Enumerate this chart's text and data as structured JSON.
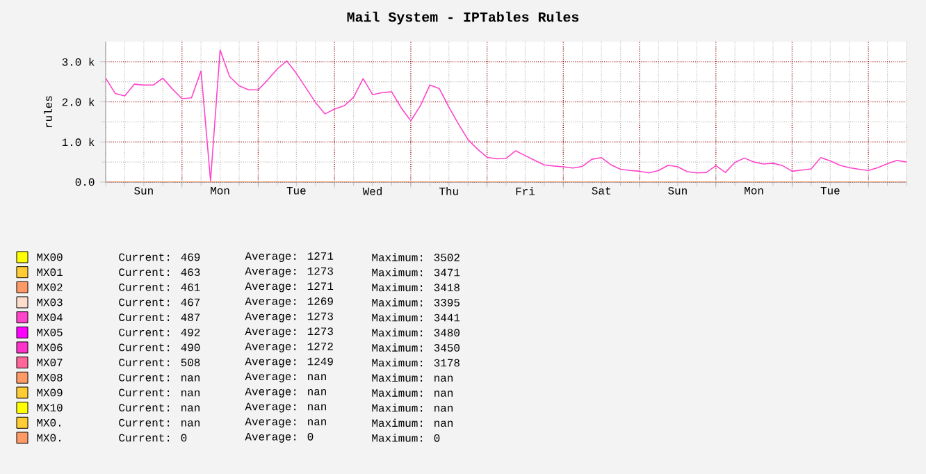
{
  "chart_data": {
    "type": "line",
    "title": "Mail System - IPTables Rules",
    "ylabel": "rules",
    "categories": [
      null,
      null,
      null,
      null,
      "Sun",
      null,
      null,
      null,
      null,
      null,
      null,
      null,
      "Mon",
      null,
      null,
      null,
      null,
      null,
      null,
      null,
      "Tue",
      null,
      null,
      null,
      null,
      null,
      null,
      null,
      "Wed",
      null,
      null,
      null,
      null,
      null,
      null,
      null,
      "Thu",
      null,
      null,
      null,
      null,
      null,
      null,
      null,
      "Fri",
      null,
      null,
      null,
      null,
      null,
      null,
      null,
      "Sat",
      null,
      null,
      null,
      null,
      null,
      null,
      null,
      "Sun",
      null,
      null,
      null,
      null,
      null,
      null,
      null,
      "Mon",
      null,
      null,
      null,
      null,
      null,
      null,
      null,
      "Tue",
      null,
      null,
      null,
      null,
      null,
      null,
      null,
      null
    ],
    "series": [
      {
        "name": "MX00",
        "color": "#ffff00",
        "values": [
          null,
          null,
          null,
          null,
          null,
          null,
          null,
          null,
          null,
          null,
          null,
          null,
          null,
          null,
          null,
          null,
          null,
          null,
          null,
          null,
          null,
          null,
          null,
          null,
          null,
          null,
          null,
          null,
          null,
          null,
          null,
          null,
          null,
          null,
          null,
          null,
          null,
          null,
          null,
          null,
          null,
          null,
          null,
          null,
          null,
          null,
          null,
          null,
          null,
          null,
          null,
          null,
          null,
          null,
          null,
          null,
          null,
          null,
          null,
          null,
          null,
          null,
          null,
          null,
          null,
          null,
          null,
          null,
          null,
          null,
          null,
          null,
          null,
          null,
          null,
          null,
          null,
          null,
          null,
          null,
          null,
          null,
          null,
          null,
          null
        ]
      },
      {
        "name": "MX01",
        "color": "#ffcc33",
        "values": [
          null,
          null,
          null,
          null,
          null,
          null,
          null,
          null,
          null,
          null,
          null,
          null,
          null,
          null,
          null,
          null,
          null,
          null,
          null,
          null,
          null,
          null,
          null,
          null,
          null,
          null,
          null,
          null,
          null,
          null,
          null,
          null,
          null,
          null,
          null,
          null,
          null,
          null,
          null,
          null,
          null,
          null,
          null,
          null,
          null,
          null,
          null,
          null,
          null,
          null,
          null,
          null,
          null,
          null,
          null,
          null,
          null,
          null,
          null,
          null,
          null,
          null,
          null,
          null,
          null,
          null,
          null,
          null,
          null,
          null,
          null,
          null,
          null,
          null,
          null,
          null,
          null,
          null,
          null,
          null,
          null,
          null,
          null,
          null,
          null
        ]
      },
      {
        "name": "MX02",
        "color": "#ff9966",
        "values": [
          null,
          null,
          null,
          null,
          null,
          null,
          null,
          null,
          null,
          null,
          null,
          null,
          null,
          null,
          null,
          null,
          null,
          null,
          null,
          null,
          null,
          null,
          null,
          null,
          null,
          null,
          null,
          null,
          null,
          null,
          null,
          null,
          null,
          null,
          null,
          null,
          null,
          null,
          null,
          null,
          null,
          null,
          null,
          null,
          null,
          null,
          null,
          null,
          null,
          null,
          null,
          null,
          null,
          null,
          null,
          null,
          null,
          null,
          null,
          null,
          null,
          null,
          null,
          null,
          null,
          null,
          null,
          null,
          null,
          null,
          null,
          null,
          null,
          null,
          null,
          null,
          null,
          null,
          null,
          null,
          null,
          null,
          null,
          null,
          null
        ]
      },
      {
        "name": "MX03",
        "color": "#ffddcc",
        "values": [
          null,
          null,
          null,
          null,
          null,
          null,
          null,
          null,
          null,
          null,
          null,
          null,
          null,
          null,
          null,
          null,
          null,
          null,
          null,
          null,
          null,
          null,
          null,
          null,
          null,
          null,
          null,
          null,
          null,
          null,
          null,
          null,
          null,
          null,
          null,
          null,
          null,
          null,
          null,
          null,
          null,
          null,
          null,
          null,
          null,
          null,
          null,
          null,
          null,
          null,
          null,
          null,
          null,
          null,
          null,
          null,
          null,
          null,
          null,
          null,
          null,
          null,
          null,
          null,
          null,
          null,
          null,
          null,
          null,
          null,
          null,
          null,
          null,
          null,
          null,
          null,
          null,
          null,
          null,
          null,
          null,
          null,
          null,
          null,
          null
        ]
      },
      {
        "name": "MX04",
        "color": "#ff44cc",
        "values": [
          2590,
          2210,
          2150,
          2440,
          2420,
          2420,
          2590,
          2320,
          2080,
          2100,
          2770,
          30,
          3290,
          2630,
          2400,
          2300,
          2300,
          2550,
          2820,
          3020,
          2710,
          2350,
          1990,
          1700,
          1820,
          1900,
          2110,
          2580,
          2180,
          2230,
          2250,
          1850,
          1530,
          1900,
          2420,
          2330,
          1870,
          1450,
          1060,
          820,
          620,
          580,
          590,
          780,
          660,
          540,
          430,
          400,
          380,
          350,
          390,
          570,
          610,
          430,
          320,
          290,
          270,
          230,
          290,
          420,
          380,
          260,
          230,
          240,
          410,
          240,
          490,
          600,
          500,
          450,
          470,
          410,
          270,
          300,
          330,
          610,
          530,
          420,
          360,
          320,
          290,
          360,
          460,
          540,
          500
        ]
      },
      {
        "name": "MX05",
        "color": "#ff00ff",
        "values": [
          null,
          null,
          null,
          null,
          null,
          null,
          null,
          null,
          null,
          null,
          null,
          null,
          null,
          null,
          null,
          null,
          null,
          null,
          null,
          null,
          null,
          null,
          null,
          null,
          null,
          null,
          null,
          null,
          null,
          null,
          null,
          null,
          null,
          null,
          null,
          null,
          null,
          null,
          null,
          null,
          null,
          null,
          null,
          null,
          null,
          null,
          null,
          null,
          null,
          null,
          null,
          null,
          null,
          null,
          null,
          null,
          null,
          null,
          null,
          null,
          null,
          null,
          null,
          null,
          null,
          null,
          null,
          null,
          null,
          null,
          null,
          null,
          null,
          null,
          null,
          null,
          null,
          null,
          null,
          null,
          null,
          null,
          null,
          null,
          null
        ]
      },
      {
        "name": "MX06",
        "color": "#ff33cc",
        "values": [
          null,
          null,
          null,
          null,
          null,
          null,
          null,
          null,
          null,
          null,
          null,
          null,
          null,
          null,
          null,
          null,
          null,
          null,
          null,
          null,
          null,
          null,
          null,
          null,
          null,
          null,
          null,
          null,
          null,
          null,
          null,
          null,
          null,
          null,
          null,
          null,
          null,
          null,
          null,
          null,
          null,
          null,
          null,
          null,
          null,
          null,
          null,
          null,
          null,
          null,
          null,
          null,
          null,
          null,
          null,
          null,
          null,
          null,
          null,
          null,
          null,
          null,
          null,
          null,
          null,
          null,
          null,
          null,
          null,
          null,
          null,
          null,
          null,
          null,
          null,
          null,
          null,
          null,
          null,
          null,
          null,
          null,
          null,
          null,
          null
        ]
      },
      {
        "name": "MX07",
        "color": "#ff6699",
        "values": [
          null,
          null,
          null,
          null,
          null,
          null,
          null,
          null,
          null,
          null,
          null,
          null,
          null,
          null,
          null,
          null,
          null,
          null,
          null,
          null,
          null,
          null,
          null,
          null,
          null,
          null,
          null,
          null,
          null,
          null,
          null,
          null,
          null,
          null,
          null,
          null,
          null,
          null,
          null,
          null,
          null,
          null,
          null,
          null,
          null,
          null,
          null,
          null,
          null,
          null,
          null,
          null,
          null,
          null,
          null,
          null,
          null,
          null,
          null,
          null,
          null,
          null,
          null,
          null,
          null,
          null,
          null,
          null,
          null,
          null,
          null,
          null,
          null,
          null,
          null,
          null,
          null,
          null,
          null,
          null,
          null,
          null,
          null,
          null,
          null
        ]
      },
      {
        "name": "MX08",
        "color": "#ff9966",
        "values": [
          null,
          null,
          null,
          null,
          null,
          null,
          null,
          null,
          null,
          null,
          null,
          null,
          null,
          null,
          null,
          null,
          null,
          null,
          null,
          null,
          null,
          null,
          null,
          null,
          null,
          null,
          null,
          null,
          null,
          null,
          null,
          null,
          null,
          null,
          null,
          null,
          null,
          null,
          null,
          null,
          null,
          null,
          null,
          null,
          null,
          null,
          null,
          null,
          null,
          null,
          null,
          null,
          null,
          null,
          null,
          null,
          null,
          null,
          null,
          null,
          null,
          null,
          null,
          null,
          null,
          null,
          null,
          null,
          null,
          null,
          null,
          null,
          null,
          null,
          null,
          null,
          null,
          null,
          null,
          null,
          null,
          null,
          null,
          null,
          null
        ]
      },
      {
        "name": "MX09",
        "color": "#ffcc33",
        "values": [
          null,
          null,
          null,
          null,
          null,
          null,
          null,
          null,
          null,
          null,
          null,
          null,
          null,
          null,
          null,
          null,
          null,
          null,
          null,
          null,
          null,
          null,
          null,
          null,
          null,
          null,
          null,
          null,
          null,
          null,
          null,
          null,
          null,
          null,
          null,
          null,
          null,
          null,
          null,
          null,
          null,
          null,
          null,
          null,
          null,
          null,
          null,
          null,
          null,
          null,
          null,
          null,
          null,
          null,
          null,
          null,
          null,
          null,
          null,
          null,
          null,
          null,
          null,
          null,
          null,
          null,
          null,
          null,
          null,
          null,
          null,
          null,
          null,
          null,
          null,
          null,
          null,
          null,
          null,
          null,
          null,
          null,
          null,
          null,
          null
        ]
      },
      {
        "name": "MX10",
        "color": "#ffff00",
        "values": [
          null,
          null,
          null,
          null,
          null,
          null,
          null,
          null,
          null,
          null,
          null,
          null,
          null,
          null,
          null,
          null,
          null,
          null,
          null,
          null,
          null,
          null,
          null,
          null,
          null,
          null,
          null,
          null,
          null,
          null,
          null,
          null,
          null,
          null,
          null,
          null,
          null,
          null,
          null,
          null,
          null,
          null,
          null,
          null,
          null,
          null,
          null,
          null,
          null,
          null,
          null,
          null,
          null,
          null,
          null,
          null,
          null,
          null,
          null,
          null,
          null,
          null,
          null,
          null,
          null,
          null,
          null,
          null,
          null,
          null,
          null,
          null,
          null,
          null,
          null,
          null,
          null,
          null,
          null,
          null,
          null,
          null,
          null,
          null,
          null
        ]
      },
      {
        "name": "MX0.",
        "color": "#ffcc33",
        "values": [
          null,
          null,
          null,
          null,
          null,
          null,
          null,
          null,
          null,
          null,
          null,
          null,
          null,
          null,
          null,
          null,
          null,
          null,
          null,
          null,
          null,
          null,
          null,
          null,
          null,
          null,
          null,
          null,
          null,
          null,
          null,
          null,
          null,
          null,
          null,
          null,
          null,
          null,
          null,
          null,
          null,
          null,
          null,
          null,
          null,
          null,
          null,
          null,
          null,
          null,
          null,
          null,
          null,
          null,
          null,
          null,
          null,
          null,
          null,
          null,
          null,
          null,
          null,
          null,
          null,
          null,
          null,
          null,
          null,
          null,
          null,
          null,
          null,
          null,
          null,
          null,
          null,
          null,
          null,
          null,
          null,
          null,
          null,
          null,
          null
        ]
      },
      {
        "name": "MX0.",
        "color": "#ff9966",
        "values": [
          0,
          0,
          0,
          0,
          0,
          0,
          0,
          0,
          0,
          0,
          0,
          0,
          0,
          0,
          0,
          0,
          0,
          0,
          0,
          0,
          0,
          0,
          0,
          0,
          0,
          0,
          0,
          0,
          0,
          0,
          0,
          0,
          0,
          0,
          0,
          0,
          0,
          0,
          0,
          0,
          0,
          0,
          0,
          0,
          0,
          0,
          0,
          0,
          0,
          0,
          0,
          0,
          0,
          0,
          0,
          0,
          0,
          0,
          0,
          0,
          0,
          0,
          0,
          0,
          0,
          0,
          0,
          0,
          0,
          0,
          0,
          0,
          0,
          0,
          0,
          0,
          0,
          0,
          0,
          0,
          0,
          0,
          0,
          0,
          0
        ]
      }
    ],
    "annotations": [
      "Current: 469",
      "Average: 1271",
      "Maximum: 3502",
      "Current: 463",
      "Average: 1273",
      "Maximum: 3471",
      "Current: 461",
      "Average: 1271",
      "Maximum: 3418",
      "Current: 467",
      "Average: 1269",
      "Maximum: 3395",
      "Current: 487",
      "Average: 1273",
      "Maximum: 3441",
      "Current: 492",
      "Average: 1273",
      "Maximum: 3480",
      "Current: 490",
      "Average: 1272",
      "Maximum: 3450",
      "Current: 508",
      "Average: 1249",
      "Maximum: 3178",
      "Current: nan",
      "Average: nan",
      "Maximum: nan",
      "Current: nan",
      "Average: nan",
      "Maximum: nan",
      "Current: nan",
      "Average: nan",
      "Maximum: nan",
      "Current: nan",
      "Average: nan",
      "Maximum: nan",
      "Current: 0",
      "Average: 0",
      "Maximum: 0"
    ],
    "ylim": [
      0,
      3500
    ],
    "yticks": [
      {
        "value": 0,
        "label": "0.0"
      },
      {
        "value": 1000,
        "label": "1.0 k"
      },
      {
        "value": 2000,
        "label": "2.0 k"
      },
      {
        "value": 3000,
        "label": "3.0 k"
      }
    ],
    "grid": true,
    "legend": "bottom"
  }
}
